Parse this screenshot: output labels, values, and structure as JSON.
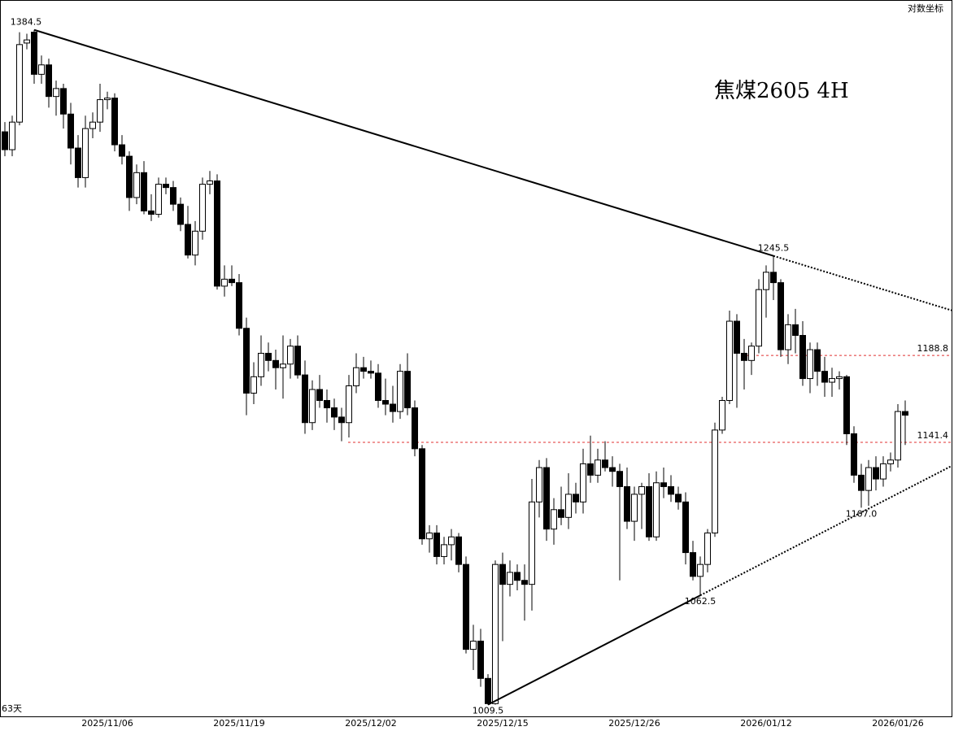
{
  "chart_data": {
    "type": "candlestick",
    "title": "焦煤2605  4H",
    "scale_note": "对数坐标",
    "period_note": "63天",
    "log": true,
    "ylim": [
      1004,
      1404
    ],
    "categories": [
      null,
      null,
      null,
      null,
      null,
      null,
      null,
      null,
      null,
      null,
      null,
      null,
      null,
      null,
      "2025/11/06",
      null,
      null,
      null,
      null,
      null,
      null,
      null,
      null,
      null,
      null,
      null,
      null,
      null,
      null,
      null,
      null,
      null,
      "2025/11/19",
      null,
      null,
      null,
      null,
      null,
      null,
      null,
      null,
      null,
      null,
      null,
      null,
      null,
      null,
      null,
      null,
      null,
      "2025/12/02",
      null,
      null,
      null,
      null,
      null,
      null,
      null,
      null,
      null,
      null,
      null,
      null,
      null,
      null,
      null,
      null,
      null,
      "2025/12/15",
      null,
      null,
      null,
      null,
      null,
      null,
      null,
      null,
      null,
      null,
      null,
      null,
      null,
      null,
      null,
      null,
      null,
      "2025/12/26",
      null,
      null,
      null,
      null,
      null,
      null,
      null,
      null,
      null,
      null,
      null,
      null,
      null,
      null,
      null,
      null,
      null,
      "2026/01/12",
      null,
      null,
      null,
      null,
      null,
      null,
      null,
      null,
      null,
      null,
      null,
      null,
      null,
      null,
      null,
      null,
      null,
      "2026/01/26",
      null
    ],
    "open": [
      1320,
      1309,
      1326,
      1376,
      1383,
      1356,
      1362,
      1342,
      1347,
      1331,
      1310,
      1292,
      1322,
      1326,
      1340,
      1341,
      1312,
      1305,
      1280,
      1295,
      1272,
      1270,
      1288,
      1286,
      1276,
      1264,
      1246,
      1260,
      1288,
      1290,
      1228,
      1232,
      1230,
      1204,
      1168,
      1177,
      1190,
      1186,
      1182,
      1184,
      1194,
      1178,
      1152,
      1170,
      1164,
      1160,
      1155,
      1152,
      1172,
      1182,
      1180,
      1179,
      1164,
      1162,
      1158,
      1180,
      1160,
      1138,
      1091,
      1094,
      1082,
      1088,
      1092,
      1078,
      1036,
      1040,
      1022,
      1010,
      1078,
      1068,
      1074,
      1070,
      1068,
      1110,
      1128,
      1096,
      1106,
      1102,
      1114,
      1110,
      1130,
      1124,
      1132,
      1128,
      1126,
      1118,
      1100,
      1114,
      1118,
      1092,
      1120,
      1118,
      1114,
      1110,
      1084,
      1072,
      1078,
      1094,
      1148,
      1164,
      1208,
      1190,
      1186,
      1194,
      1226,
      1236,
      1230,
      1192,
      1206,
      1200,
      1176,
      1192,
      1180,
      1174,
      1176,
      1177,
      1146,
      1124,
      1116,
      1128,
      1122,
      1130,
      1132,
      1158
    ],
    "high": [
      1326,
      1330,
      1383,
      1382,
      1384.5,
      1368,
      1366,
      1352,
      1350,
      1338,
      1318,
      1330,
      1332,
      1350,
      1345,
      1344,
      1318,
      1308,
      1300,
      1302,
      1282,
      1292,
      1292,
      1290,
      1280,
      1275,
      1266,
      1292,
      1296,
      1294,
      1240,
      1240,
      1235,
      1210,
      1185,
      1200,
      1196,
      1192,
      1200,
      1198,
      1200,
      1186,
      1175,
      1178,
      1170,
      1165,
      1160,
      1178,
      1190,
      1188,
      1186,
      1184,
      1176,
      1172,
      1184,
      1190,
      1164,
      1140,
      1098,
      1098,
      1092,
      1096,
      1094,
      1082,
      1048,
      1046,
      1024,
      1080,
      1084,
      1080,
      1078,
      1078,
      1122,
      1132,
      1133,
      1112,
      1118,
      1125,
      1120,
      1138,
      1145,
      1138,
      1142,
      1134,
      1130,
      1128,
      1118,
      1120,
      1125,
      1126,
      1128,
      1124,
      1118,
      1115,
      1090,
      1082,
      1096,
      1152,
      1166,
      1214,
      1212,
      1198,
      1196,
      1232,
      1240,
      1245.5,
      1232,
      1212,
      1215,
      1208,
      1196,
      1196,
      1188,
      1182,
      1180,
      1178,
      1150,
      1130,
      1132,
      1134,
      1134,
      1136,
      1162,
      1164
    ],
    "low": [
      1305,
      1305,
      1324,
      1372,
      1350,
      1350,
      1335,
      1330,
      1322,
      1300,
      1286,
      1286,
      1316,
      1320,
      1334,
      1308,
      1300,
      1272,
      1276,
      1270,
      1266,
      1268,
      1282,
      1272,
      1260,
      1244,
      1240,
      1255,
      1282,
      1226,
      1222,
      1228,
      1200,
      1156,
      1162,
      1172,
      1180,
      1170,
      1165,
      1176,
      1176,
      1146,
      1148,
      1160,
      1152,
      1148,
      1142,
      1144,
      1168,
      1176,
      1176,
      1160,
      1156,
      1152,
      1154,
      1156,
      1134,
      1088,
      1084,
      1078,
      1078,
      1080,
      1074,
      1034,
      1026,
      1018,
      1009.5,
      1009.5,
      1040,
      1062,
      1065,
      1050,
      1055,
      1102,
      1090,
      1088,
      1098,
      1096,
      1104,
      1104,
      1120,
      1120,
      1126,
      1118,
      1070,
      1096,
      1090,
      1096,
      1090,
      1090,
      1112,
      1110,
      1106,
      1078,
      1070,
      1062.5,
      1074,
      1092,
      1146,
      1162,
      1160,
      1170,
      1178,
      1190,
      1210,
      1220,
      1188,
      1184,
      1190,
      1172,
      1168,
      1172,
      1166,
      1166,
      1170,
      1140,
      1120,
      1107,
      1108,
      1116,
      1118,
      1126,
      1128,
      1140
    ],
    "close": [
      1309,
      1326,
      1375,
      1378,
      1356,
      1362,
      1342,
      1347,
      1331,
      1310,
      1292,
      1322,
      1326,
      1340,
      1341,
      1312,
      1305,
      1280,
      1295,
      1272,
      1270,
      1288,
      1286,
      1276,
      1264,
      1246,
      1260,
      1288,
      1290,
      1228,
      1232,
      1230,
      1204,
      1168,
      1177,
      1190,
      1186,
      1182,
      1184,
      1194,
      1178,
      1152,
      1170,
      1164,
      1160,
      1155,
      1152,
      1172,
      1182,
      1180,
      1179,
      1164,
      1162,
      1158,
      1180,
      1160,
      1138,
      1091,
      1094,
      1082,
      1088,
      1092,
      1078,
      1036,
      1040,
      1022,
      1010,
      1078,
      1068,
      1074,
      1070,
      1068,
      1110,
      1128,
      1096,
      1106,
      1102,
      1114,
      1110,
      1130,
      1124,
      1132,
      1128,
      1126,
      1118,
      1100,
      1114,
      1118,
      1092,
      1120,
      1118,
      1114,
      1110,
      1084,
      1072,
      1078,
      1094,
      1148,
      1164,
      1208,
      1190,
      1186,
      1194,
      1226,
      1236,
      1230,
      1192,
      1206,
      1200,
      1176,
      1192,
      1180,
      1174,
      1176,
      1177,
      1146,
      1124,
      1116,
      1128,
      1122,
      1130,
      1132,
      1158,
      1156
    ],
    "price_labels": [
      1384.5,
      1245.5,
      1062.5,
      {
        "value": 1107,
        "label": "1107.0"
      },
      1009.5
    ],
    "levels": [
      1188.8,
      1141.4
    ],
    "level_color": "#e03030"
  }
}
